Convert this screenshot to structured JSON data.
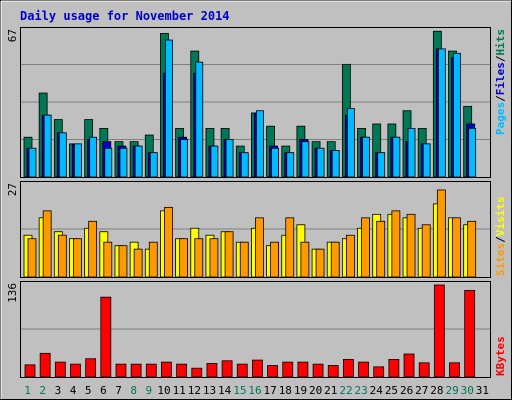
{
  "title": "Daily usage for November 2014",
  "colors": {
    "background": "#c0c0c0",
    "border": "#000000",
    "title": "#0000cc",
    "hits": "#007755",
    "files": "#0000cc",
    "pages": "#00bbff",
    "visits": "#ffff00",
    "sites": "#ff9900",
    "kbytes": "#ff0000",
    "weekend_label": "#007755",
    "weekday_label": "#000000"
  },
  "labels": {
    "pages": "Pages",
    "files": "Files",
    "hits": "Hits",
    "sites": "Sites",
    "visits": "Visits",
    "kbytes": "KBytes",
    "sep": "/"
  },
  "chart_data": [
    {
      "type": "bar",
      "title": "Daily usage for November 2014",
      "panel": "hits-files-pages",
      "categories": [
        "1",
        "2",
        "3",
        "4",
        "5",
        "6",
        "7",
        "8",
        "9",
        "10",
        "11",
        "12",
        "13",
        "14",
        "15",
        "16",
        "17",
        "18",
        "19",
        "20",
        "21",
        "22",
        "23",
        "24",
        "25",
        "26",
        "27",
        "28",
        "29",
        "30",
        "31"
      ],
      "ylim": [
        0,
        67
      ],
      "y_tick": "67",
      "series": [
        {
          "name": "Hits",
          "values": [
            18,
            38,
            26,
            15,
            26,
            22,
            16,
            16,
            19,
            65,
            22,
            57,
            22,
            22,
            14,
            29,
            23,
            14,
            23,
            16,
            16,
            51,
            22,
            24,
            24,
            30,
            22,
            66,
            57,
            32,
            0
          ]
        },
        {
          "name": "Files",
          "values": [
            13,
            28,
            20,
            15,
            17,
            16,
            14,
            14,
            11,
            47,
            18,
            47,
            14,
            17,
            11,
            29,
            14,
            11,
            17,
            13,
            12,
            28,
            18,
            11,
            18,
            16,
            15,
            58,
            54,
            24,
            0
          ]
        },
        {
          "name": "Pages",
          "values": [
            13,
            28,
            20,
            15,
            18,
            13,
            13,
            14,
            11,
            62,
            17,
            52,
            14,
            17,
            11,
            30,
            13,
            11,
            16,
            13,
            12,
            31,
            18,
            11,
            18,
            22,
            15,
            58,
            56,
            22,
            0
          ]
        }
      ]
    },
    {
      "type": "bar",
      "panel": "visits-sites",
      "categories": [
        "1",
        "2",
        "3",
        "4",
        "5",
        "6",
        "7",
        "8",
        "9",
        "10",
        "11",
        "12",
        "13",
        "14",
        "15",
        "16",
        "17",
        "18",
        "19",
        "20",
        "21",
        "22",
        "23",
        "24",
        "25",
        "26",
        "27",
        "28",
        "29",
        "30",
        "31"
      ],
      "ylim": [
        0,
        27
      ],
      "y_tick": "27",
      "series": [
        {
          "name": "Visits",
          "values": [
            12,
            17,
            13,
            11,
            14,
            13,
            9,
            10,
            8,
            19,
            11,
            14,
            12,
            13,
            10,
            14,
            9,
            12,
            15,
            8,
            10,
            11,
            14,
            18,
            18,
            17,
            14,
            21,
            17,
            15,
            0
          ]
        },
        {
          "name": "Sites",
          "values": [
            11,
            19,
            12,
            11,
            16,
            10,
            9,
            8,
            10,
            20,
            11,
            11,
            11,
            13,
            10,
            17,
            10,
            17,
            10,
            8,
            10,
            12,
            17,
            16,
            19,
            18,
            15,
            25,
            17,
            16,
            0
          ]
        }
      ]
    },
    {
      "type": "bar",
      "panel": "kbytes",
      "categories": [
        "1",
        "2",
        "3",
        "4",
        "5",
        "6",
        "7",
        "8",
        "9",
        "10",
        "11",
        "12",
        "13",
        "14",
        "15",
        "16",
        "17",
        "18",
        "19",
        "20",
        "21",
        "22",
        "23",
        "24",
        "25",
        "26",
        "27",
        "28",
        "29",
        "30",
        "31"
      ],
      "ylim": [
        0,
        136
      ],
      "y_tick": "136",
      "series": [
        {
          "name": "KBytes",
          "values": [
            18,
            35,
            22,
            19,
            27,
            118,
            19,
            19,
            19,
            22,
            19,
            13,
            20,
            24,
            19,
            25,
            17,
            22,
            22,
            19,
            17,
            26,
            22,
            15,
            26,
            34,
            21,
            136,
            21,
            128,
            0
          ]
        }
      ]
    }
  ]
}
